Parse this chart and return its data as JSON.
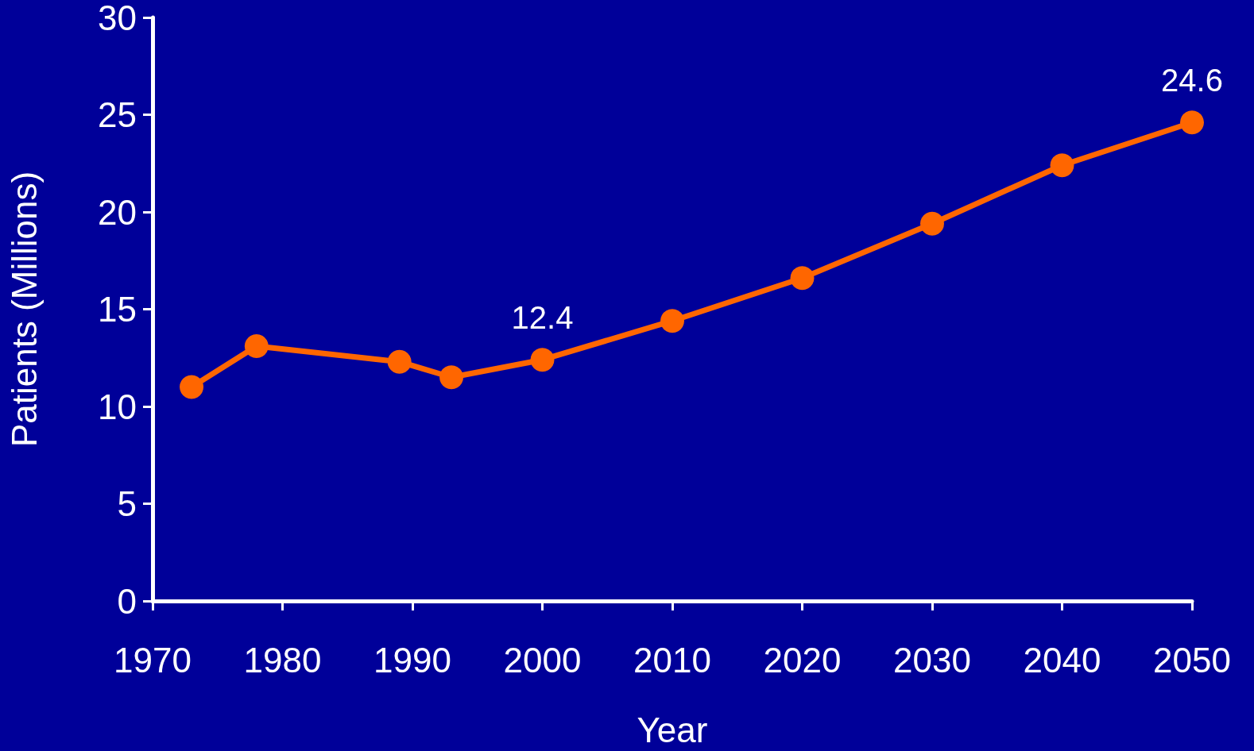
{
  "chart_data": {
    "type": "line",
    "xlabel": "Year",
    "ylabel": "Patients (Millions)",
    "x": [
      1973,
      1978,
      1989,
      1993,
      2000,
      2010,
      2020,
      2030,
      2040,
      2050
    ],
    "series": [
      {
        "color": "#ff6600",
        "values": [
          11.0,
          13.1,
          12.3,
          11.5,
          12.4,
          14.4,
          16.6,
          19.4,
          22.4,
          24.6
        ],
        "value_labels": [
          null,
          null,
          null,
          null,
          "12.4",
          null,
          null,
          null,
          null,
          "24.6"
        ]
      }
    ],
    "xlim": [
      1970,
      2050
    ],
    "xticks": [
      1970,
      1980,
      1990,
      2000,
      2010,
      2020,
      2030,
      2040,
      2050
    ],
    "ylim": [
      0,
      30
    ],
    "yticks": [
      0,
      5,
      10,
      15,
      20,
      25,
      30
    ],
    "grid": false,
    "marker": "circle",
    "line_style": "solid"
  }
}
